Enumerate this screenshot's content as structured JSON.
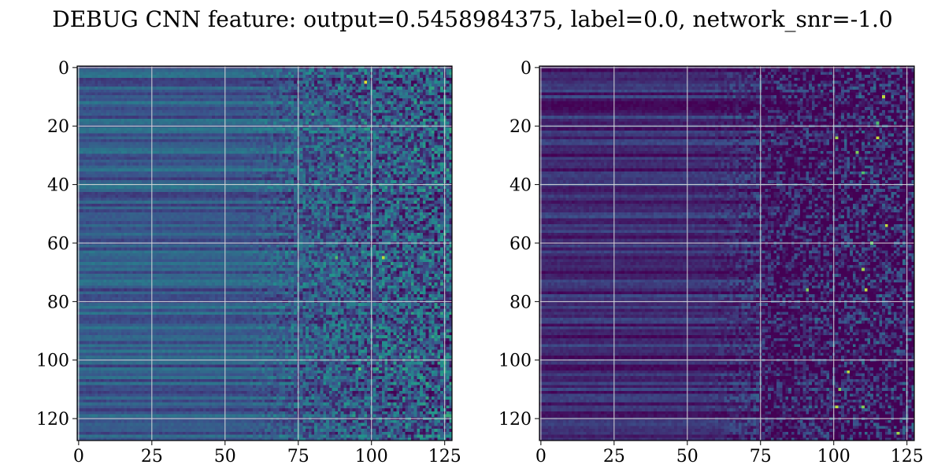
{
  "title": "DEBUG CNN feature: output=0.5458984375, label=0.0, network_snr=-1.0",
  "colormap": [
    "#440154",
    "#3b528b",
    "#21918c",
    "#5ec962",
    "#fde725"
  ],
  "chart_data": [
    {
      "type": "heatmap",
      "title": "",
      "shape": [
        128,
        128
      ],
      "x_ticks": [
        0,
        25,
        50,
        75,
        100,
        125
      ],
      "y_ticks": [
        0,
        20,
        40,
        60,
        80,
        100,
        120
      ],
      "xlim": [
        -0.5,
        127.5
      ],
      "ylim": [
        127.5,
        -0.5
      ],
      "grid": true,
      "base_level": 0.28,
      "texture": "horizontal banding in columns 0-70, increasingly noisy toward the right",
      "hot_pixels": [
        [
          5,
          98,
          0.95
        ],
        [
          65,
          104,
          0.9
        ],
        [
          65,
          88,
          0.7
        ],
        [
          103,
          96,
          0.75
        ],
        [
          30,
          90,
          0.6
        ],
        [
          16,
          80,
          0.6
        ],
        [
          103,
          102,
          0.6
        ],
        [
          68,
          110,
          0.55
        ],
        [
          19,
          98,
          0.55
        ]
      ]
    },
    {
      "type": "heatmap",
      "title": "",
      "shape": [
        128,
        128
      ],
      "x_ticks": [
        0,
        25,
        50,
        75,
        100,
        125
      ],
      "y_ticks": [
        0,
        20,
        40,
        60,
        80,
        100,
        120
      ],
      "xlim": [
        -0.5,
        127.5
      ],
      "ylim": [
        127.5,
        -0.5
      ],
      "grid": true,
      "base_level": 0.12,
      "texture": "dark purple banding in columns 0-70, speckled noise on the right",
      "hot_pixels": [
        [
          10,
          117,
          0.9
        ],
        [
          24,
          101,
          0.85
        ],
        [
          24,
          115,
          0.9
        ],
        [
          36,
          110,
          0.7
        ],
        [
          54,
          118,
          0.9
        ],
        [
          69,
          110,
          0.85
        ],
        [
          76,
          91,
          0.8
        ],
        [
          76,
          111,
          0.9
        ],
        [
          104,
          105,
          0.9
        ],
        [
          110,
          102,
          0.8
        ],
        [
          116,
          101,
          0.9
        ],
        [
          116,
          110,
          0.8
        ],
        [
          125,
          122,
          0.85
        ],
        [
          29,
          108,
          0.8
        ],
        [
          19,
          115,
          0.7
        ],
        [
          60,
          113,
          0.75
        ]
      ]
    }
  ]
}
